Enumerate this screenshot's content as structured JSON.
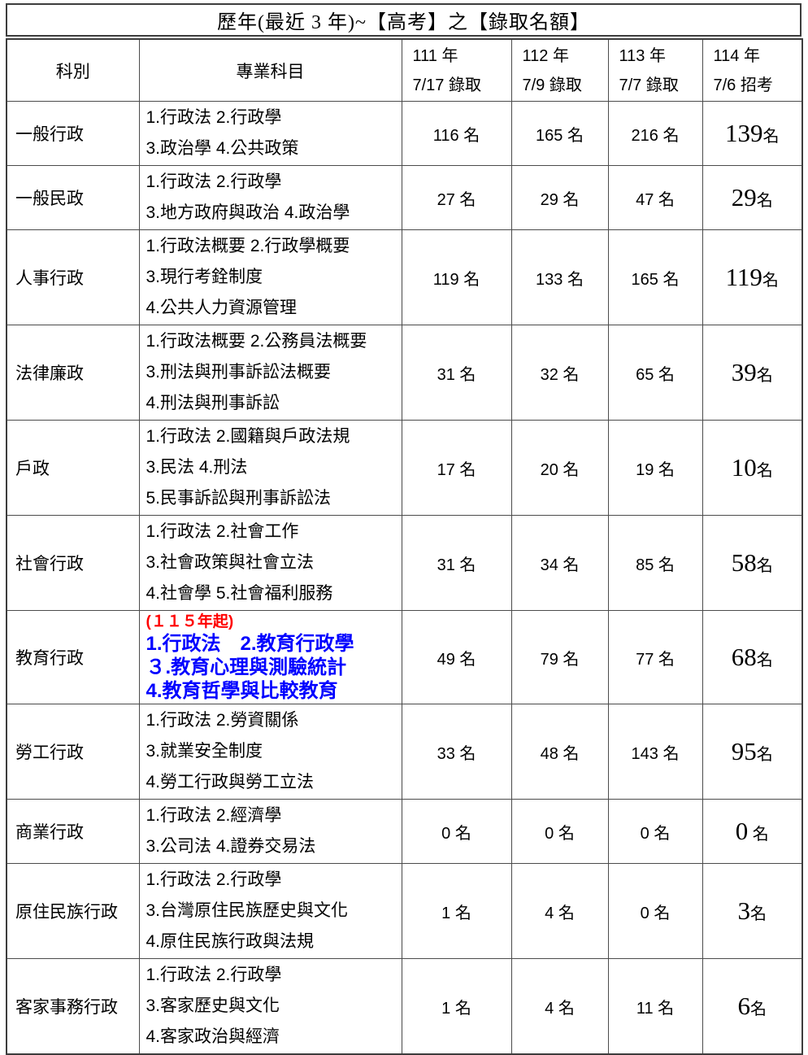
{
  "title": "歷年(最近 3 年)~【高考】之【錄取名額】",
  "columns": {
    "category": "科別",
    "subjects": "專業科目",
    "years": [
      {
        "line1": "111 年",
        "line2": "7/17 錄取"
      },
      {
        "line1": "112 年",
        "line2": "7/9 錄取"
      },
      {
        "line1": "113 年",
        "line2": "7/7 錄取"
      },
      {
        "line1": "114 年",
        "line2": "7/6 招考"
      }
    ]
  },
  "rows": [
    {
      "category": "一般行政",
      "subject_lines": [
        "1.行政法 2.行政學",
        "3.政治學 4.公共政策"
      ],
      "quotas": [
        "116 名",
        "165 名",
        "216 名",
        "139名"
      ]
    },
    {
      "category": "一般民政",
      "subject_lines": [
        "1.行政法 2.行政學",
        "3.地方政府與政治 4.政治學"
      ],
      "quotas": [
        "27 名",
        "29 名",
        "47 名",
        "29名"
      ]
    },
    {
      "category": "人事行政",
      "subject_lines": [
        "1.行政法概要 2.行政學概要",
        "3.現行考銓制度",
        "4.公共人力資源管理"
      ],
      "quotas": [
        "119 名",
        "133 名",
        "165 名",
        "119名"
      ]
    },
    {
      "category": "法律廉政",
      "subject_lines": [
        "1.行政法概要 2.公務員法概要",
        "3.刑法與刑事訴訟法概要",
        "4.刑法與刑事訴訟"
      ],
      "quotas": [
        "31 名",
        "32 名",
        "65 名",
        "39名"
      ]
    },
    {
      "category": "戶政",
      "subject_lines": [
        "1.行政法 2.國籍與戶政法規",
        "3.民法 4.刑法",
        "5.民事訴訟與刑事訴訟法"
      ],
      "quotas": [
        "17 名",
        "20 名",
        "19 名",
        "10名"
      ]
    },
    {
      "category": "社會行政",
      "subject_lines": [
        "1.行政法 2.社會工作",
        "3.社會政策與社會立法",
        "4.社會學 5.社會福利服務"
      ],
      "quotas": [
        "31 名",
        "34 名",
        "85 名",
        "58名"
      ]
    },
    {
      "category": "教育行政",
      "note": "(１１５年起)",
      "subjects_highlighted": true,
      "subject_lines": [
        "1.行政法　2.教育行政學",
        "３.教育心理與測驗統計",
        "4.教育哲學與比較教育"
      ],
      "quotas": [
        "49 名",
        "79 名",
        "77 名",
        "68名"
      ]
    },
    {
      "category": "勞工行政",
      "subject_lines": [
        "1.行政法 2.勞資關係",
        "3.就業安全制度",
        "4.勞工行政與勞工立法"
      ],
      "quotas": [
        "33 名",
        "48 名",
        "143 名",
        "95名"
      ]
    },
    {
      "category": "商業行政",
      "subject_lines": [
        "1.行政法 2.經濟學",
        "3.公司法 4.證券交易法"
      ],
      "quotas": [
        "0 名",
        "0 名",
        "0 名",
        "0 名"
      ]
    },
    {
      "category": "原住民族行政",
      "subject_lines": [
        "1.行政法 2.行政學",
        "3.台灣原住民族歷史與文化",
        "4.原住民族行政與法規"
      ],
      "quotas": [
        "1 名",
        "4 名",
        "0 名",
        "3名"
      ]
    },
    {
      "category": "客家事務行政",
      "subject_lines": [
        "1.行政法 2.行政學",
        "3.客家歷史與文化",
        "4.客家政治與經濟"
      ],
      "quotas": [
        "1 名",
        "4 名",
        "11 名",
        "6名"
      ]
    }
  ],
  "colors": {
    "text": "#000000",
    "note_red": "#ff0000",
    "subject_blue": "#0000ff",
    "border": "#4b4b4b",
    "background": "#ffffff"
  }
}
